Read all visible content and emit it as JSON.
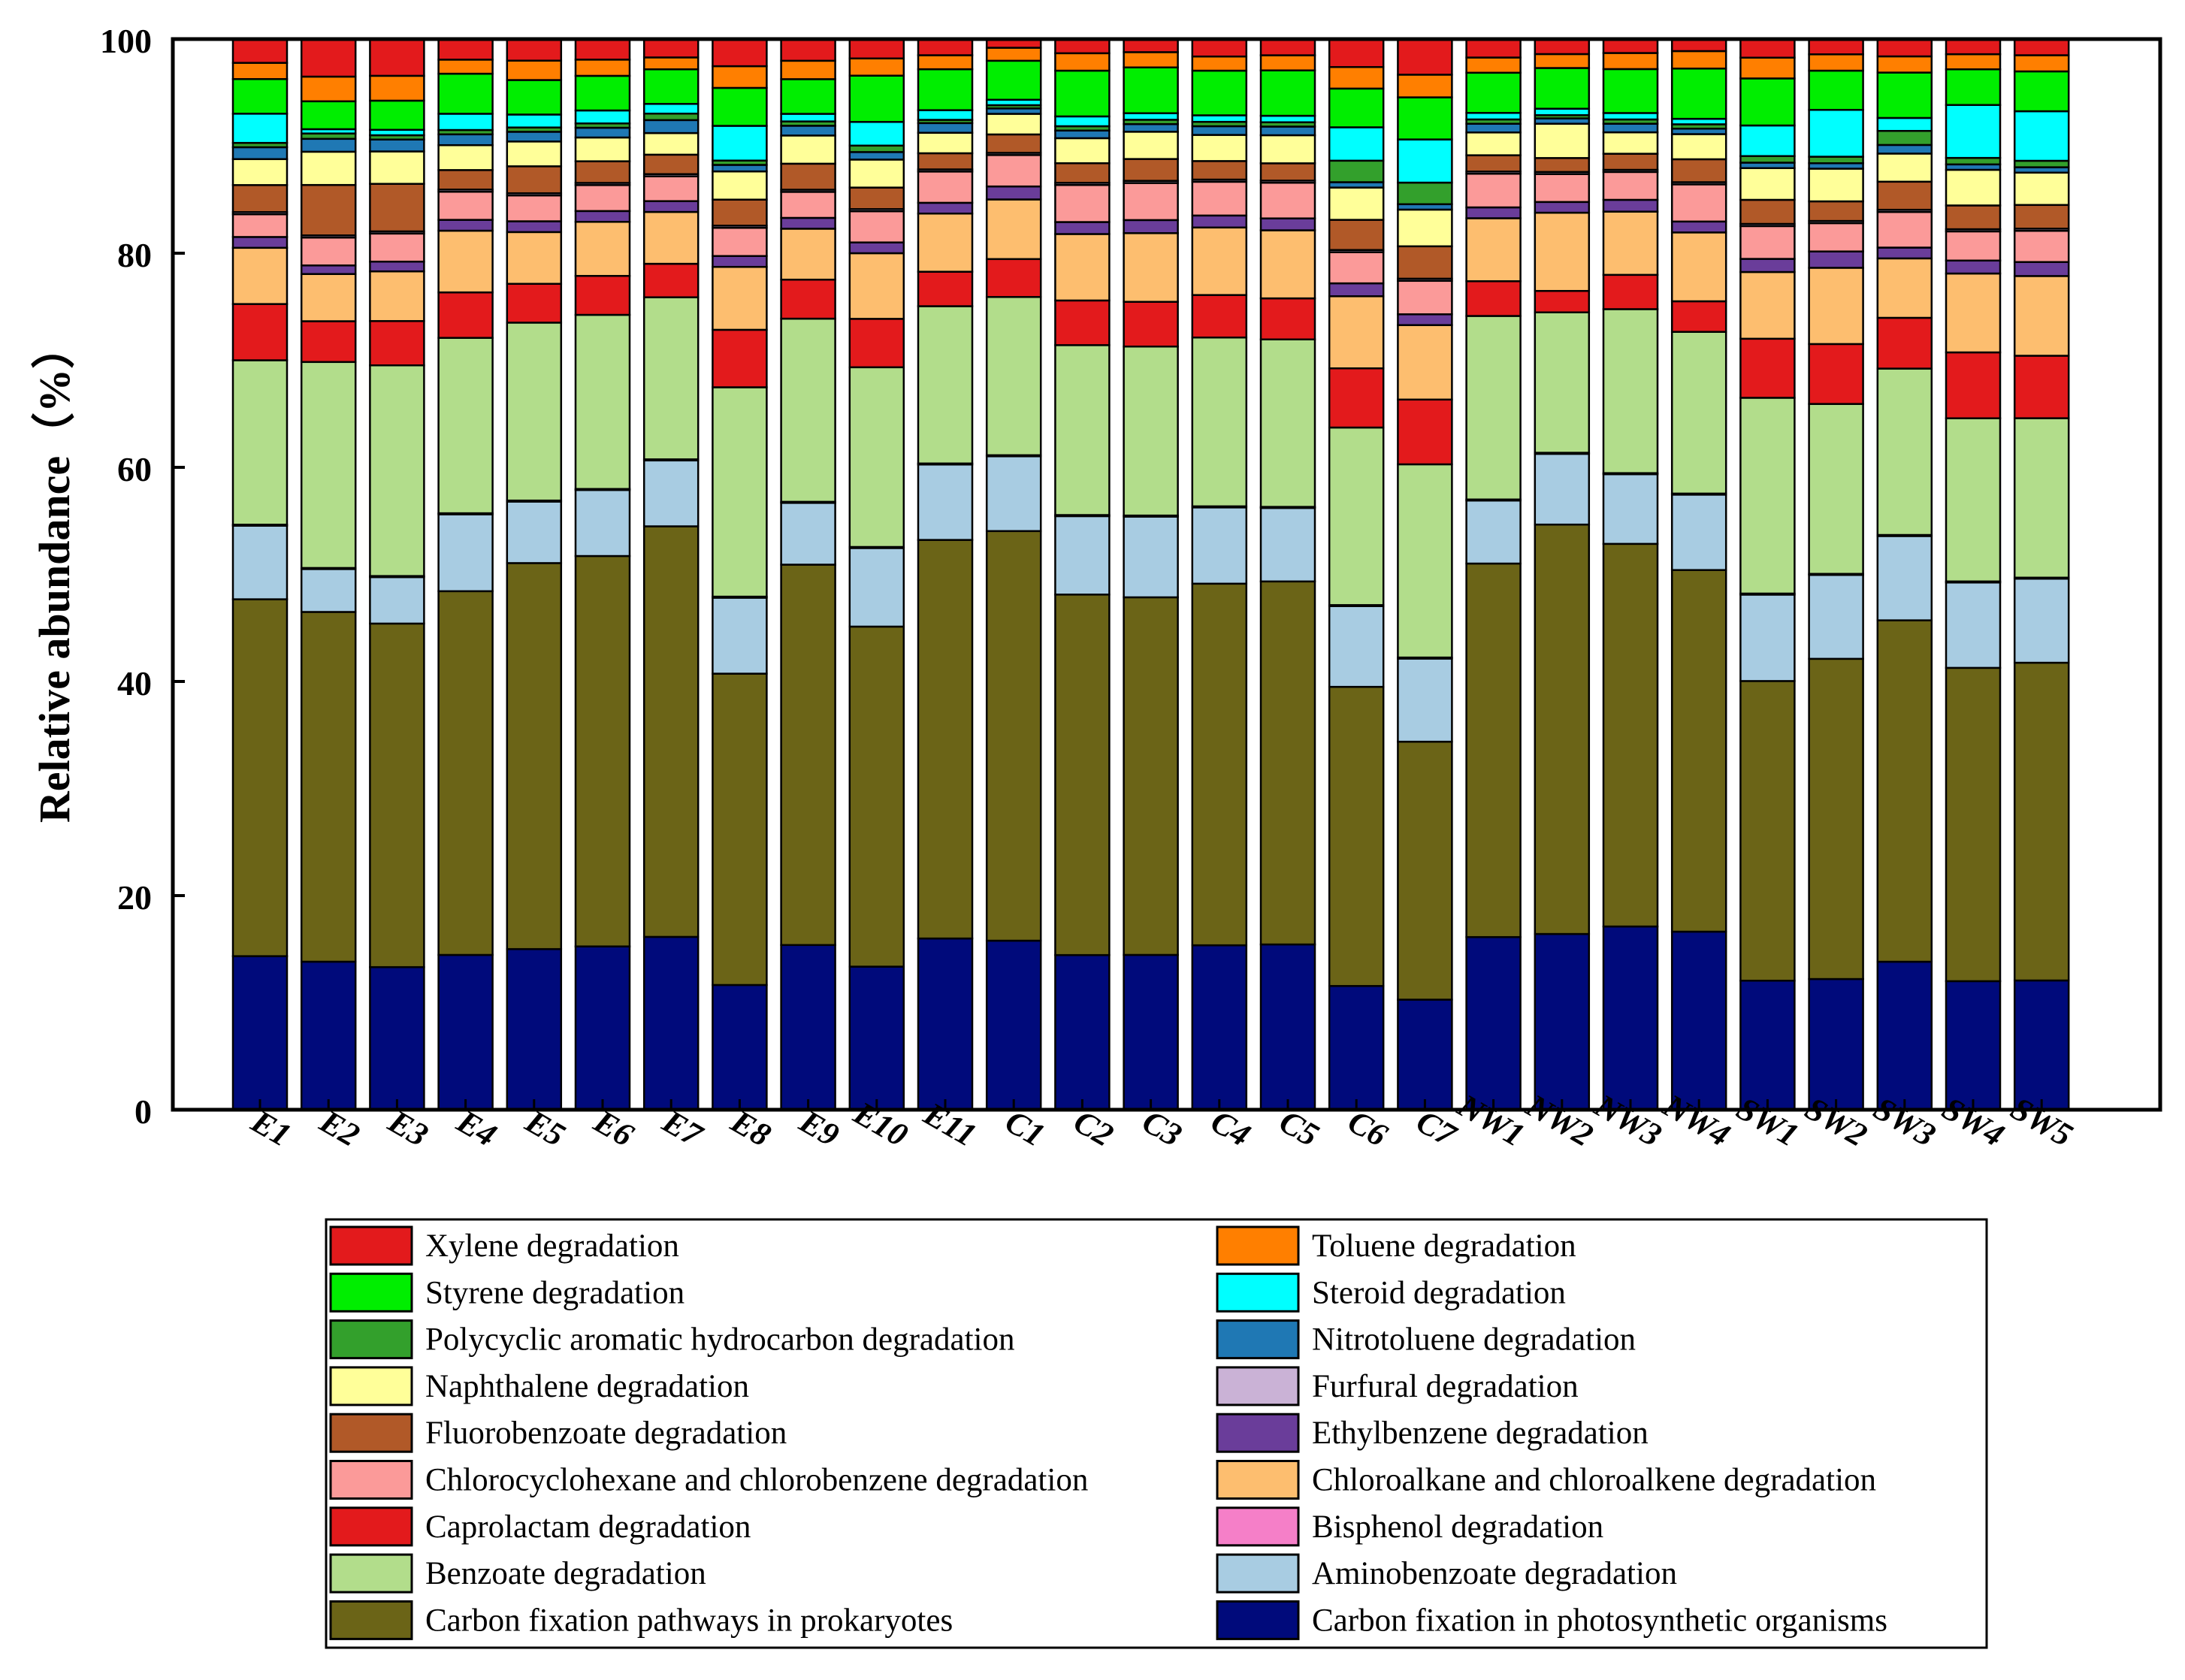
{
  "chart_data": {
    "type": "stacked-bar",
    "ylabel": "Relative abundance（%）",
    "xlabel": "",
    "ylim": [
      0,
      100
    ],
    "yticks": [
      0,
      20,
      40,
      60,
      80,
      100
    ],
    "legend_position": "bottom",
    "categories": [
      "E1",
      "E2",
      "E3",
      "E4",
      "E5",
      "E6",
      "E7",
      "E8",
      "E9",
      "E10",
      "E11",
      "C1",
      "C2",
      "C3",
      "C4",
      "C5",
      "C6",
      "C7",
      "NW1",
      "NW2",
      "NW3",
      "NW4",
      "SW1",
      "SW2",
      "SW3",
      "SW4",
      "SW5"
    ],
    "series": [
      {
        "name": "Carbon fixation in photosynthetic organisms",
        "color": "#000a7b",
        "values": [
          14.2,
          13.8,
          13.2,
          14.3,
          14.9,
          15.1,
          16.0,
          11.5,
          15.2,
          13.3,
          15.9,
          15.6,
          14.2,
          14.2,
          15.1,
          15.3,
          11.5,
          10.2,
          15.9,
          16.4,
          17.1,
          16.3,
          11.8,
          12.0,
          13.7,
          11.9,
          12.0
        ]
      },
      {
        "name": "Carbon fixation pathways in prokaryotes",
        "color": "#6b6417",
        "values": [
          33.0,
          32.6,
          31.8,
          33.6,
          35.8,
          36.1,
          38.0,
          28.7,
          35.1,
          31.6,
          37.0,
          37.8,
          33.1,
          32.8,
          33.2,
          33.6,
          27.8,
          23.9,
          34.4,
          38.2,
          35.7,
          33.1,
          27.4,
          29.4,
          31.6,
          29.0,
          29.5
        ]
      },
      {
        "name": "Aminobenzoate degradation",
        "color": "#a8cce2",
        "values": [
          6.8,
          4.0,
          4.3,
          7.1,
          5.7,
          6.1,
          6.1,
          7.0,
          5.7,
          7.3,
          7.0,
          6.9,
          7.2,
          7.4,
          7.0,
          6.8,
          7.5,
          7.7,
          5.8,
          6.6,
          6.5,
          6.9,
          7.9,
          7.7,
          7.8,
          7.9,
          7.8
        ]
      },
      {
        "name": "Bisphenol degradation",
        "color": "#f57fc8",
        "values": [
          0.1,
          0.1,
          0.1,
          0.1,
          0.1,
          0.1,
          0.1,
          0.1,
          0.1,
          0.1,
          0.1,
          0.1,
          0.1,
          0.1,
          0.1,
          0.1,
          0.1,
          0.1,
          0.1,
          0.1,
          0.1,
          0.1,
          0.1,
          0.1,
          0.1,
          0.1,
          0.1
        ]
      },
      {
        "name": "Benzoate degradation",
        "color": "#b2dd8b",
        "values": [
          15.2,
          19.2,
          19.5,
          16.2,
          16.5,
          16.1,
          15.0,
          19.3,
          16.9,
          16.7,
          14.6,
          14.6,
          15.6,
          15.5,
          15.5,
          15.5,
          16.5,
          17.9,
          16.9,
          13.1,
          15.3,
          14.8,
          17.9,
          15.6,
          15.4,
          15.1,
          14.8
        ]
      },
      {
        "name": "Caprolactam degradation",
        "color": "#e31a1c",
        "values": [
          5.2,
          3.8,
          4.1,
          4.2,
          3.6,
          3.6,
          3.1,
          5.3,
          3.6,
          4.5,
          3.2,
          3.5,
          4.1,
          4.1,
          3.9,
          3.8,
          5.5,
          6.0,
          3.2,
          2.0,
          3.2,
          2.8,
          5.4,
          5.5,
          4.7,
          6.1,
          5.8
        ]
      },
      {
        "name": "Chloroalkane and chloroalkene degradation",
        "color": "#fdbe6f",
        "values": [
          5.2,
          4.4,
          4.6,
          5.7,
          4.8,
          5.0,
          4.8,
          5.8,
          4.7,
          6.1,
          5.4,
          5.5,
          6.1,
          6.3,
          6.2,
          6.3,
          6.7,
          6.9,
          5.8,
          7.3,
          5.9,
          6.3,
          6.1,
          7.0,
          5.5,
          7.3,
          7.4
        ]
      },
      {
        "name": "Ethylbenzene degradation",
        "color": "#6a3d9a",
        "values": [
          1.0,
          0.8,
          0.9,
          1.0,
          1.0,
          1.0,
          1.0,
          1.0,
          1.0,
          1.0,
          1.0,
          1.2,
          1.1,
          1.2,
          1.1,
          1.1,
          1.2,
          1.0,
          1.0,
          1.0,
          1.1,
          1.0,
          1.2,
          1.5,
          1.0,
          1.2,
          1.3
        ]
      },
      {
        "name": "Chlorocyclohexane and chlorobenzene degradation",
        "color": "#fb9a99",
        "values": [
          2.1,
          2.6,
          2.6,
          2.6,
          2.4,
          2.4,
          2.3,
          2.6,
          2.4,
          2.9,
          2.9,
          2.9,
          3.4,
          3.4,
          3.1,
          3.3,
          2.9,
          3.1,
          3.1,
          2.6,
          2.6,
          3.4,
          3.0,
          2.6,
          3.3,
          2.7,
          2.9
        ]
      },
      {
        "name": "Furfural degradation",
        "color": "#cab2d6",
        "values": [
          0.2,
          0.2,
          0.2,
          0.2,
          0.2,
          0.2,
          0.2,
          0.2,
          0.2,
          0.2,
          0.2,
          0.2,
          0.2,
          0.2,
          0.2,
          0.2,
          0.2,
          0.2,
          0.2,
          0.2,
          0.2,
          0.2,
          0.2,
          0.2,
          0.2,
          0.2,
          0.2
        ]
      },
      {
        "name": "Fluorobenzoate degradation",
        "color": "#b15928",
        "values": [
          2.5,
          4.7,
          4.4,
          1.8,
          2.5,
          2.0,
          1.8,
          2.4,
          2.4,
          2.0,
          1.5,
          1.7,
          1.8,
          2.0,
          1.7,
          1.6,
          2.8,
          3.0,
          1.5,
          1.3,
          1.5,
          2.1,
          2.2,
          1.8,
          2.6,
          2.2,
          2.2
        ]
      },
      {
        "name": "Naphthalene degradation",
        "color": "#ffff99",
        "values": [
          2.4,
          3.1,
          3.0,
          2.3,
          2.3,
          2.2,
          2.0,
          2.6,
          2.6,
          2.6,
          1.9,
          1.9,
          2.3,
          2.5,
          2.4,
          2.6,
          3.0,
          3.4,
          2.1,
          3.2,
          2.0,
          2.3,
          2.9,
          3.0,
          2.6,
          3.3,
          3.0
        ]
      },
      {
        "name": "Nitrotoluene degradation",
        "color": "#1f78b4",
        "values": [
          1.1,
          1.2,
          1.1,
          1.0,
          0.9,
          0.9,
          1.2,
          0.6,
          0.9,
          0.7,
          0.9,
          0.5,
          0.7,
          0.7,
          0.8,
          0.8,
          0.5,
          0.5,
          0.8,
          0.5,
          0.8,
          0.5,
          0.5,
          0.5,
          0.8,
          0.5,
          0.5
        ]
      },
      {
        "name": "Polycyclic aromatic hydrocarbon degradation",
        "color": "#33a02c",
        "values": [
          0.4,
          0.5,
          0.4,
          0.4,
          0.4,
          0.4,
          0.6,
          0.4,
          0.4,
          0.6,
          0.3,
          0.3,
          0.4,
          0.4,
          0.4,
          0.4,
          2.0,
          2.0,
          0.4,
          0.3,
          0.4,
          0.4,
          0.6,
          0.6,
          1.3,
          0.6,
          0.6
        ]
      },
      {
        "name": "Steroid degradation",
        "color": "#00ffff",
        "values": [
          2.7,
          0.4,
          0.5,
          1.5,
          1.2,
          1.2,
          0.9,
          3.2,
          0.7,
          2.2,
          0.9,
          0.5,
          0.9,
          0.6,
          0.6,
          0.6,
          3.1,
          4.0,
          0.6,
          0.6,
          0.6,
          0.5,
          2.8,
          4.3,
          1.2,
          4.9,
          4.6
        ]
      },
      {
        "name": "Styrene degradation",
        "color": "#00ee00",
        "values": [
          3.2,
          2.6,
          2.7,
          3.7,
          3.2,
          3.2,
          3.2,
          3.5,
          3.2,
          4.3,
          3.8,
          3.6,
          4.2,
          4.2,
          4.1,
          4.2,
          3.6,
          3.9,
          3.7,
          3.8,
          4.1,
          4.6,
          4.3,
          3.6,
          4.2,
          3.3,
          3.7
        ]
      },
      {
        "name": "Toluene degradation",
        "color": "#ff7f00",
        "values": [
          1.5,
          2.3,
          2.3,
          1.3,
          1.8,
          1.5,
          1.1,
          2.0,
          1.7,
          1.6,
          1.3,
          1.2,
          1.6,
          1.4,
          1.3,
          1.4,
          2.0,
          2.1,
          1.4,
          1.3,
          1.5,
          1.6,
          1.9,
          1.5,
          1.5,
          1.4,
          1.5
        ]
      },
      {
        "name": "Xylene degradation",
        "color": "#e31a1c",
        "values": [
          2.2,
          3.5,
          3.4,
          1.9,
          2.0,
          1.9,
          1.7,
          2.5,
          2.0,
          1.8,
          1.5,
          0.8,
          1.3,
          1.2,
          1.6,
          1.5,
          2.6,
          3.3,
          1.7,
          1.4,
          1.3,
          1.1,
          1.7,
          1.4,
          1.6,
          1.4,
          1.5
        ]
      }
    ],
    "legend_left_column": [
      "Xylene degradation",
      "Styrene degradation",
      "Polycyclic aromatic hydrocarbon degradation",
      "Naphthalene degradation",
      "Fluorobenzoate degradation",
      "Chlorocyclohexane and chlorobenzene degradation",
      "Caprolactam degradation",
      "Benzoate degradation",
      "Carbon fixation pathways in prokaryotes"
    ],
    "legend_right_column": [
      "Toluene degradation",
      "Steroid degradation",
      "Nitrotoluene degradation",
      "Furfural degradation",
      "Ethylbenzene degradation",
      "Chloroalkane and chloroalkene degradation",
      "Bisphenol degradation",
      "Aminobenzoate degradation",
      "Carbon fixation in photosynthetic organisms"
    ]
  }
}
